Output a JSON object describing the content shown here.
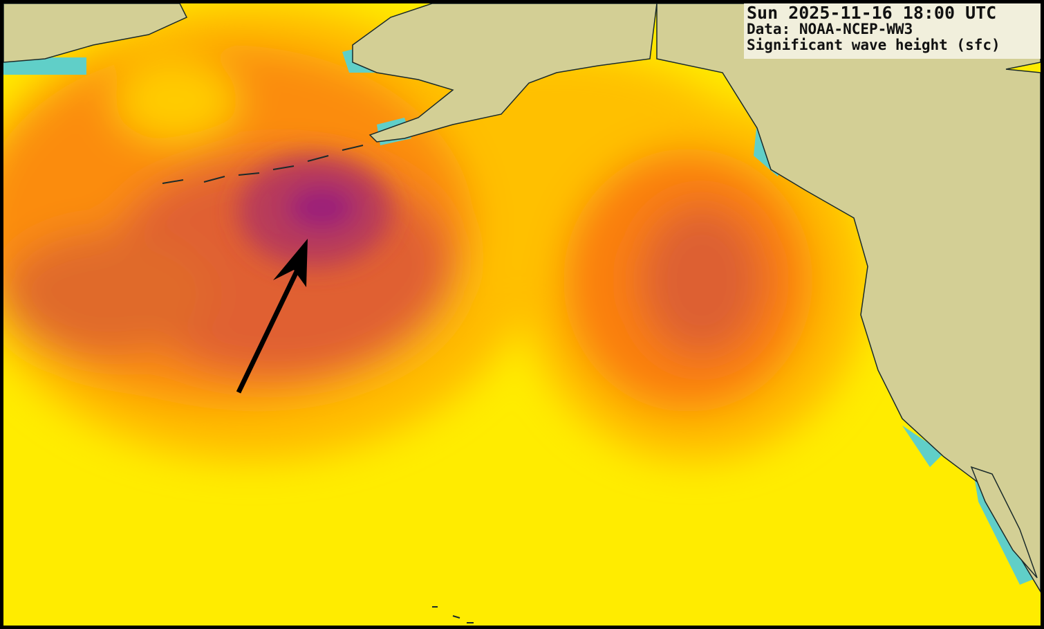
{
  "map": {
    "valid_time": "Sun 2025-11-16 18:00 UTC",
    "data_source": "Data: NOAA-NCEP-WW3",
    "variable": "Significant wave height (sfc)",
    "colors": {
      "land": "#d3cf95",
      "low_wave": "#ffee00",
      "mid_wave": "#ffbb00",
      "high_wave": "#fa7a10",
      "very_high_wave": "#d85a3a",
      "extreme_wave": "#9a1e7a",
      "coastal_calm": "#60cfc8"
    },
    "annotation": "arrow pointing to wave height maximum south of the Aleutian Islands"
  }
}
